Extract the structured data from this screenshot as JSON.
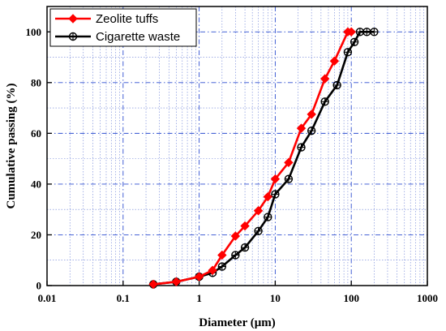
{
  "chart_data": {
    "type": "line",
    "title": "",
    "xlabel": "Diameter (μm)",
    "ylabel": "Cumulative passing (%)",
    "xscale": "log",
    "xlim": [
      0.01,
      1000
    ],
    "ylim": [
      0,
      110
    ],
    "xticks": [
      0.01,
      0.1,
      1,
      10,
      100,
      1000
    ],
    "xtick_labels": [
      "0.01",
      "0.1",
      "1",
      "10",
      "100",
      "1000"
    ],
    "yticks": [
      0,
      20,
      40,
      60,
      80,
      100
    ],
    "ytick_labels": [
      "0",
      "20",
      "40",
      "60",
      "80",
      "100"
    ],
    "grid": "blue dash-dot major and minor gridlines",
    "legend_position": "top-left",
    "series": [
      {
        "name": "Zeolite tuffs",
        "color": "#ff0000",
        "marker": "diamond",
        "x": [
          0.25,
          0.5,
          1.0,
          1.5,
          2.0,
          3.0,
          4.0,
          6.0,
          8.0,
          10.0,
          15.0,
          22.0,
          30.0,
          45.0,
          60.0,
          90.0,
          100.0
        ],
        "y": [
          0.5,
          1.5,
          3.5,
          6.0,
          12.0,
          19.5,
          23.5,
          29.5,
          35.0,
          42.0,
          48.5,
          62.0,
          67.5,
          81.5,
          88.5,
          100.0,
          100.0
        ]
      },
      {
        "name": "Cigarette waste",
        "color": "#000000",
        "marker": "circle-plus",
        "x": [
          0.25,
          0.5,
          1.0,
          1.5,
          2.0,
          3.0,
          4.0,
          6.0,
          8.0,
          10.0,
          15.0,
          22.0,
          30.0,
          45.0,
          65.0,
          90.0,
          110.0,
          130.0,
          160.0,
          200.0
        ],
        "y": [
          0.5,
          1.5,
          3.5,
          5.0,
          7.5,
          12.0,
          15.0,
          21.5,
          27.0,
          36.0,
          42.0,
          54.5,
          61.0,
          72.5,
          79.0,
          92.0,
          96.0,
          100.0,
          100.0,
          100.0
        ]
      }
    ]
  }
}
